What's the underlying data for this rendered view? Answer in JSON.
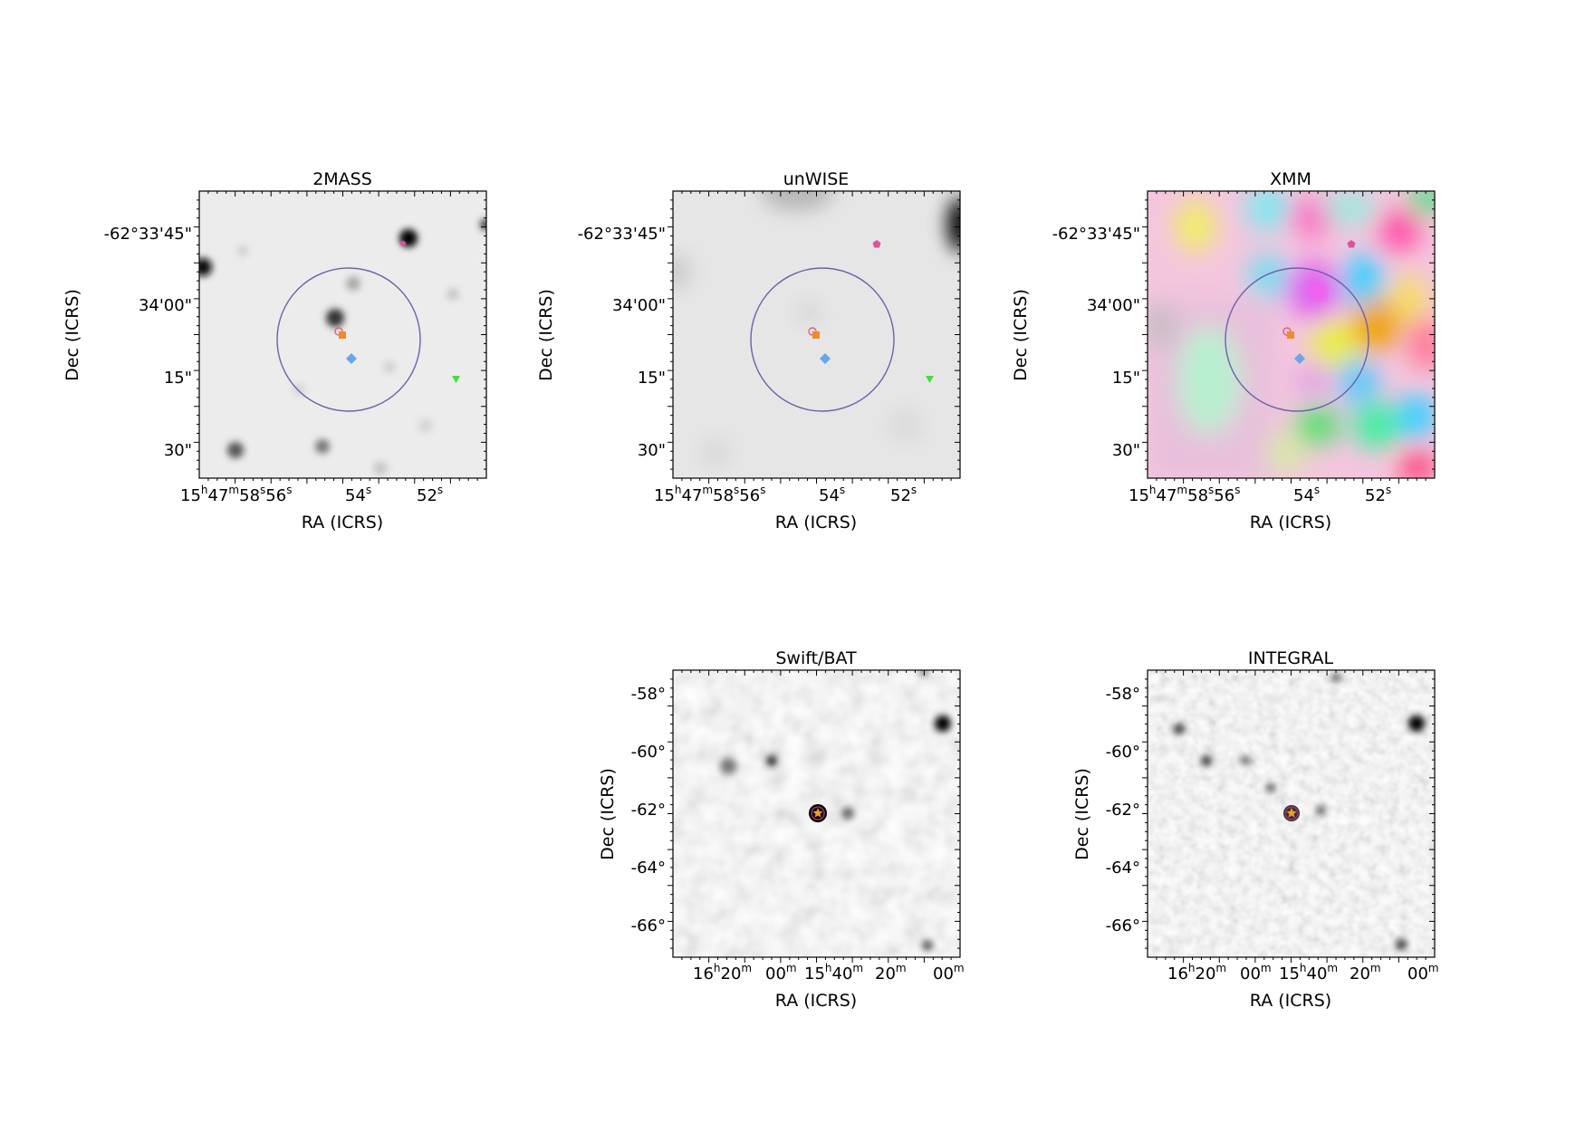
{
  "figure": {
    "panels": [
      {
        "key": "2mass",
        "title": "2MASS",
        "xlabel": "RA (ICRS)",
        "ylabel": "Dec (ICRS)",
        "yticks": [
          "-62°33'45\"",
          "34'00\"",
          "15\"",
          "30\""
        ],
        "xticks": [
          {
            "h": "15",
            "m": "47",
            "s": "58",
            "tail": "56"
          },
          {
            "main": "54",
            "unit": "s"
          },
          {
            "main": "52",
            "unit": "s"
          }
        ]
      },
      {
        "key": "unwise",
        "title": "unWISE",
        "xlabel": "RA (ICRS)",
        "ylabel": "Dec (ICRS)",
        "yticks": [
          "-62°33'45\"",
          "34'00\"",
          "15\"",
          "30\""
        ],
        "xticks": [
          {
            "h": "15",
            "m": "47",
            "s": "58",
            "tail": "56"
          },
          {
            "main": "54",
            "unit": "s"
          },
          {
            "main": "52",
            "unit": "s"
          }
        ]
      },
      {
        "key": "xmm",
        "title": "XMM",
        "xlabel": "RA (ICRS)",
        "ylabel": "Dec (ICRS)",
        "yticks": [
          "-62°33'45\"",
          "34'00\"",
          "15\"",
          "30\""
        ],
        "xticks": [
          {
            "h": "15",
            "m": "47",
            "s": "58",
            "tail": "56"
          },
          {
            "main": "54",
            "unit": "s"
          },
          {
            "main": "52",
            "unit": "s"
          }
        ]
      },
      {
        "key": "bat",
        "title": "Swift/BAT",
        "xlabel": "RA (ICRS)",
        "ylabel": "Dec (ICRS)",
        "yticks": [
          "-58°",
          "-60°",
          "-62°",
          "-64°",
          "-66°"
        ],
        "xticks": [
          {
            "main": "16",
            "unit": "h",
            "rest": "20",
            "unit2": "m"
          },
          {
            "main": "00",
            "unit": "m"
          },
          {
            "main": "15",
            "unit": "h",
            "rest": "40",
            "unit2": "m"
          },
          {
            "main": "20",
            "unit": "m"
          },
          {
            "main": "00",
            "unit": "m"
          }
        ]
      },
      {
        "key": "integral",
        "title": "INTEGRAL",
        "xlabel": "RA (ICRS)",
        "ylabel": "Dec (ICRS)",
        "yticks": [
          "-58°",
          "-60°",
          "-62°",
          "-64°",
          "-66°"
        ],
        "xticks": [
          {
            "main": "16",
            "unit": "h",
            "rest": "20",
            "unit2": "m"
          },
          {
            "main": "00",
            "unit": "m"
          },
          {
            "main": "15",
            "unit": "h",
            "rest": "40",
            "unit2": "m"
          },
          {
            "main": "20",
            "unit": "m"
          },
          {
            "main": "00",
            "unit": "m"
          }
        ]
      }
    ]
  },
  "colors": {
    "circle": "#6b63a8",
    "marker_open_circle": "#e0607e",
    "marker_square": "#f08a2e",
    "marker_diamond": "#6aa6e8",
    "marker_triangle": "#3de03d",
    "marker_pentagon": "#e0509a",
    "marker_star": "#f0a020"
  }
}
